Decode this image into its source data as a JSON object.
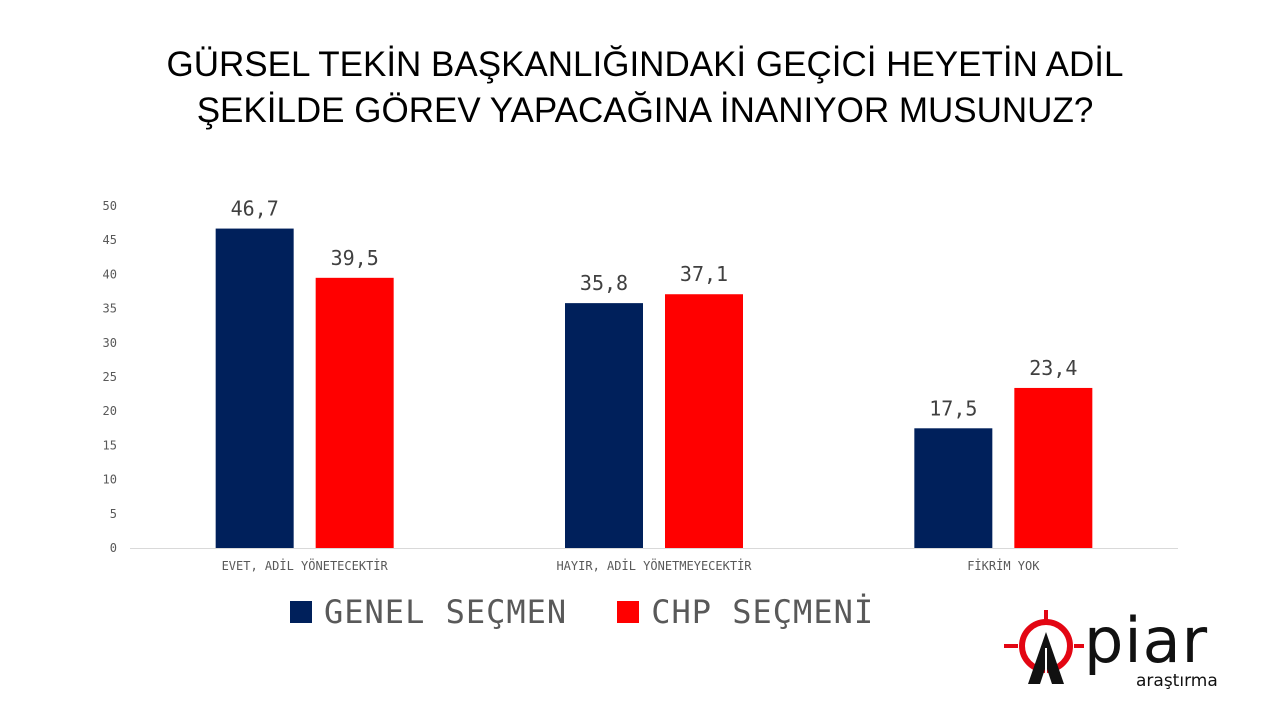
{
  "title_lines": [
    "GÜRSEL TEKİN BAŞKANLIĞINDAKİ GEÇİCİ HEYETİN ADİL",
    "ŞEKİLDE GÖREV YAPACAĞINA İNANIYOR MUSUNUZ?"
  ],
  "chart_data": {
    "type": "bar",
    "title": "GÜRSEL TEKİN BAŞKANLIĞINDAKİ GEÇİCİ HEYETİN ADİL ŞEKİLDE GÖREV YAPACAĞINA İNANIYOR MUSUNUZ?",
    "categories": [
      "EVET, ADİL YÖNETECEKTİR",
      "HAYIR, ADİL YÖNETMEYECEKTİR",
      "FİKRİM YOK"
    ],
    "series": [
      {
        "name": "GENEL SEÇMEN",
        "color": "#00205B",
        "values": [
          46.7,
          35.8,
          17.5
        ],
        "labels": [
          "46,7",
          "35,8",
          "17,5"
        ]
      },
      {
        "name": "CHP SEÇMENİ",
        "color": "#FF0000",
        "values": [
          39.5,
          37.1,
          23.4
        ],
        "labels": [
          "39,5",
          "37,1",
          "23,4"
        ]
      }
    ],
    "ylim": [
      0,
      50
    ],
    "yticks": [
      0,
      5,
      10,
      15,
      20,
      25,
      30,
      35,
      40,
      45,
      50
    ],
    "grid": false,
    "legend_position": "bottom"
  },
  "legend": {
    "items": [
      {
        "label": "GENEL SEÇMEN",
        "color": "#00205B"
      },
      {
        "label": "CHP SEÇMENİ",
        "color": "#FF0000"
      }
    ]
  },
  "logo": {
    "name": "piar",
    "subtitle": "araştırma",
    "accent": "#E30613"
  }
}
